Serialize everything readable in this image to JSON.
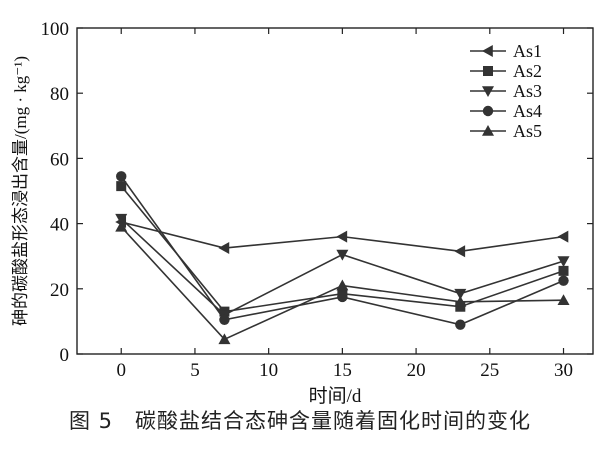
{
  "caption": {
    "figure_no": "图 5",
    "text": "碳酸盐结合态砷含量随着固化时间的变化"
  },
  "chart_data": {
    "type": "line",
    "title": "",
    "xlabel": "时间/d",
    "ylabel": "砷的碳酸盐形态浸出含量/(mg · kg⁻¹)",
    "xlim": [
      -3,
      32
    ],
    "ylim": [
      0,
      100
    ],
    "x_ticks": [
      0,
      5,
      10,
      15,
      20,
      25,
      30
    ],
    "y_ticks": [
      0,
      20,
      40,
      60,
      80,
      100
    ],
    "grid": false,
    "legend_position": "top-right",
    "x": [
      0,
      7,
      15,
      23,
      30
    ],
    "series": [
      {
        "name": "As1",
        "marker": "triangle-left",
        "values": [
          40.5,
          32.5,
          36,
          31.5,
          36
        ]
      },
      {
        "name": "As2",
        "marker": "square",
        "values": [
          51.5,
          13,
          18.5,
          14.5,
          25.5
        ]
      },
      {
        "name": "As3",
        "marker": "triangle-down",
        "values": [
          41.5,
          12,
          30.5,
          18.5,
          28.5
        ]
      },
      {
        "name": "As4",
        "marker": "circle",
        "values": [
          54.5,
          10.5,
          17.5,
          9,
          22.5
        ]
      },
      {
        "name": "As5",
        "marker": "triangle-up",
        "values": [
          39,
          4.5,
          21,
          16,
          16.5
        ]
      }
    ],
    "line_color": "#333333"
  }
}
